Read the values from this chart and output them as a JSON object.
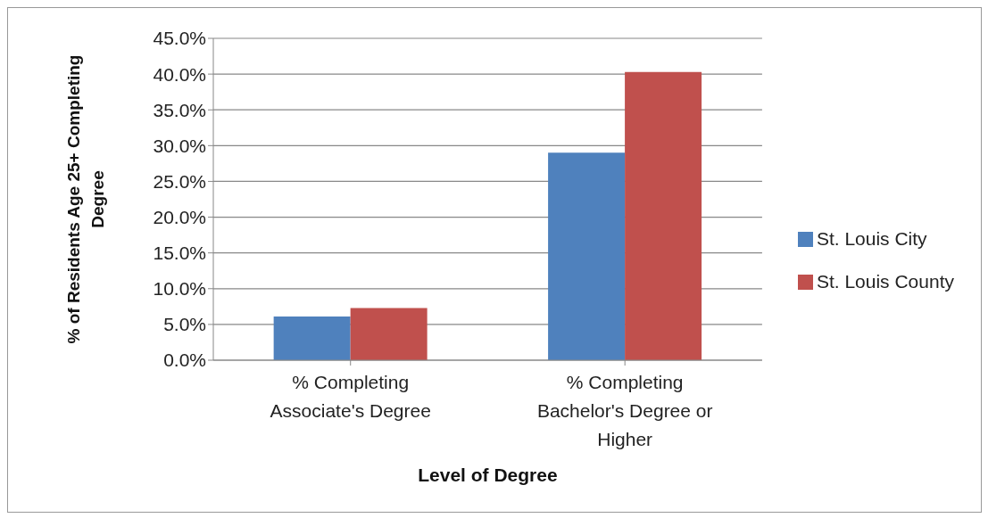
{
  "chart_data": {
    "type": "bar",
    "xlabel": "Level of Degree",
    "ylabel": "% of Residents Age 25+ Completing Degree",
    "categories": [
      "% Completing Associate's Degree",
      "% Completing Bachelor's Degree or Higher"
    ],
    "series": [
      {
        "name": "St. Louis City",
        "color": "#4f81bd",
        "values": [
          6.1,
          29.0
        ]
      },
      {
        "name": "St. Louis County",
        "color": "#c0504d",
        "values": [
          7.3,
          40.3
        ]
      }
    ],
    "ylim": [
      0,
      45
    ],
    "yticks": [
      {
        "value": 0,
        "label": "0.0%"
      },
      {
        "value": 5,
        "label": "5.0%"
      },
      {
        "value": 10,
        "label": "10.0%"
      },
      {
        "value": 15,
        "label": "15.0%"
      },
      {
        "value": 20,
        "label": "20.0%"
      },
      {
        "value": 25,
        "label": "25.0%"
      },
      {
        "value": 30,
        "label": "30.0%"
      },
      {
        "value": 35,
        "label": "35.0%"
      },
      {
        "value": 40,
        "label": "40.0%"
      },
      {
        "value": 45,
        "label": "45.0%"
      }
    ],
    "grid": "y",
    "legend": "right"
  }
}
